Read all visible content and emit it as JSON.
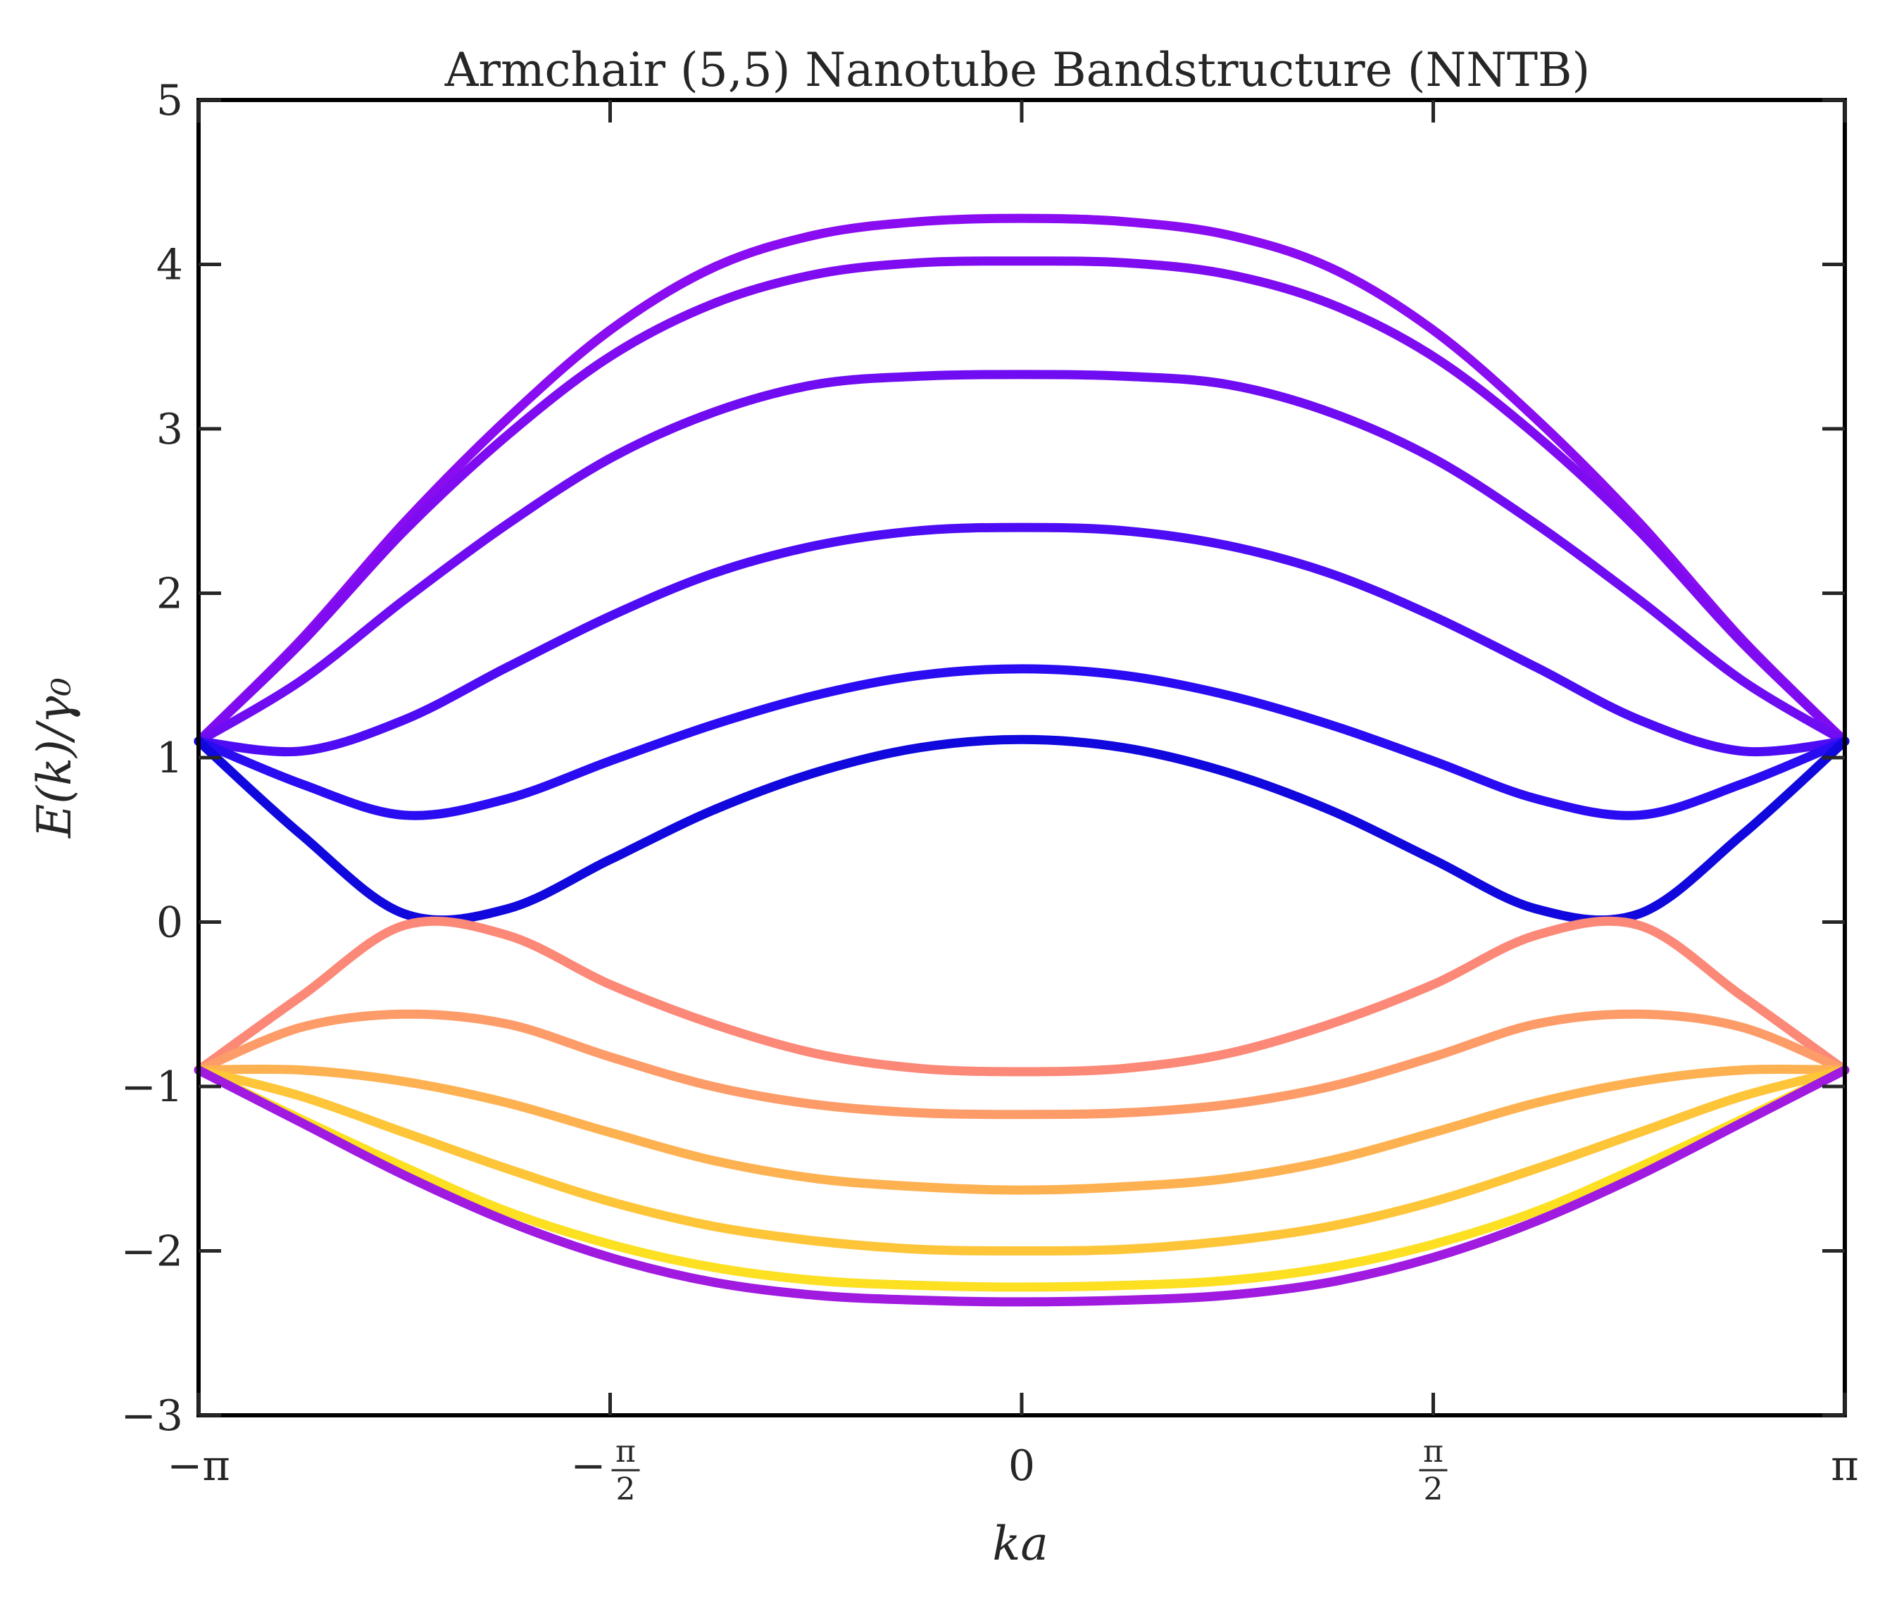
{
  "chart_data": {
    "type": "line",
    "title": "Armchair (5,5) Nanotube Bandstructure (NNTB)",
    "xlabel": "ka",
    "ylabel": "E(k)/γ₀",
    "xlim": [
      -3.14159,
      3.14159
    ],
    "ylim": [
      -3,
      5
    ],
    "grid": false,
    "legend": "none",
    "xticks": [
      {
        "value": -3.14159,
        "label": "−π"
      },
      {
        "value": -1.5708,
        "label": "−π/2"
      },
      {
        "value": 0,
        "label": "0"
      },
      {
        "value": 1.5708,
        "label": "π/2"
      },
      {
        "value": 3.14159,
        "label": "π"
      }
    ],
    "yticks": [
      {
        "value": -3,
        "label": "−3"
      },
      {
        "value": -2,
        "label": "−2"
      },
      {
        "value": -1,
        "label": "−1"
      },
      {
        "value": 0,
        "label": "0"
      },
      {
        "value": 1,
        "label": "1"
      },
      {
        "value": 2,
        "label": "2"
      },
      {
        "value": 3,
        "label": "3"
      },
      {
        "value": 4,
        "label": "4"
      },
      {
        "value": 5,
        "label": "5"
      }
    ],
    "x": [
      -3.1416,
      -2.7489,
      -2.3562,
      -1.9635,
      -1.5708,
      -1.1781,
      -0.7854,
      -0.3927,
      0,
      0.3927,
      0.7854,
      1.1781,
      1.5708,
      1.9635,
      2.3562,
      2.7489,
      3.1416
    ],
    "series": [
      {
        "color": "#8a0cf0",
        "values": [
          1.1,
          1.72,
          2.43,
          3.06,
          3.6,
          3.98,
          4.18,
          4.26,
          4.28,
          4.26,
          4.18,
          3.98,
          3.6,
          3.06,
          2.43,
          1.72,
          1.1
        ]
      },
      {
        "color": "#7f0cf0",
        "values": [
          1.1,
          1.7,
          2.38,
          2.96,
          3.44,
          3.76,
          3.94,
          4.01,
          4.02,
          4.01,
          3.94,
          3.76,
          3.44,
          2.96,
          2.38,
          1.7,
          1.1
        ]
      },
      {
        "color": "#6f0cf2",
        "values": [
          1.1,
          1.47,
          1.96,
          2.42,
          2.82,
          3.1,
          3.27,
          3.32,
          3.33,
          3.32,
          3.27,
          3.1,
          2.82,
          2.42,
          1.96,
          1.47,
          1.1
        ]
      },
      {
        "color": "#4e0cf4",
        "values": [
          1.1,
          1.04,
          1.23,
          1.55,
          1.86,
          2.12,
          2.29,
          2.38,
          2.4,
          2.38,
          2.29,
          2.12,
          1.86,
          1.55,
          1.23,
          1.04,
          1.1
        ]
      },
      {
        "color": "#2a0cf2",
        "values": [
          1.1,
          0.84,
          0.65,
          0.75,
          0.98,
          1.2,
          1.38,
          1.5,
          1.54,
          1.5,
          1.38,
          1.2,
          0.98,
          0.75,
          0.65,
          0.84,
          1.1
        ]
      },
      {
        "color": "#1008dc",
        "values": [
          1.1,
          0.53,
          0.05,
          0.08,
          0.38,
          0.68,
          0.91,
          1.06,
          1.11,
          1.06,
          0.91,
          0.68,
          0.38,
          0.08,
          0.05,
          0.53,
          1.1
        ]
      },
      {
        "color": "#fc8877",
        "values": [
          -0.9,
          -0.45,
          -0.02,
          -0.08,
          -0.38,
          -0.62,
          -0.8,
          -0.89,
          -0.91,
          -0.89,
          -0.8,
          -0.62,
          -0.38,
          -0.08,
          -0.02,
          -0.45,
          -0.9
        ]
      },
      {
        "color": "#fd9c68",
        "values": [
          -0.9,
          -0.64,
          -0.56,
          -0.62,
          -0.82,
          -1.0,
          -1.11,
          -1.16,
          -1.17,
          -1.16,
          -1.11,
          -1.0,
          -0.82,
          -0.62,
          -0.56,
          -0.64,
          -0.9
        ]
      },
      {
        "color": "#feb151",
        "values": [
          -0.9,
          -0.9,
          -0.97,
          -1.1,
          -1.28,
          -1.45,
          -1.56,
          -1.61,
          -1.63,
          -1.61,
          -1.56,
          -1.45,
          -1.28,
          -1.1,
          -0.97,
          -0.9,
          -0.9
        ]
      },
      {
        "color": "#fec538",
        "values": [
          -0.9,
          -1.06,
          -1.28,
          -1.5,
          -1.7,
          -1.85,
          -1.94,
          -1.99,
          -2.0,
          -1.99,
          -1.94,
          -1.85,
          -1.7,
          -1.5,
          -1.28,
          -1.06,
          -0.9
        ]
      },
      {
        "color": "#fde022",
        "values": [
          -0.9,
          -1.2,
          -1.49,
          -1.76,
          -1.96,
          -2.1,
          -2.18,
          -2.21,
          -2.22,
          -2.21,
          -2.18,
          -2.1,
          -1.96,
          -1.76,
          -1.49,
          -1.2,
          -0.9
        ]
      },
      {
        "color": "#a01ae0",
        "values": [
          -0.9,
          -1.22,
          -1.54,
          -1.82,
          -2.04,
          -2.19,
          -2.27,
          -2.3,
          -2.31,
          -2.3,
          -2.27,
          -2.19,
          -2.04,
          -1.82,
          -1.54,
          -1.22,
          -0.9
        ]
      }
    ]
  }
}
